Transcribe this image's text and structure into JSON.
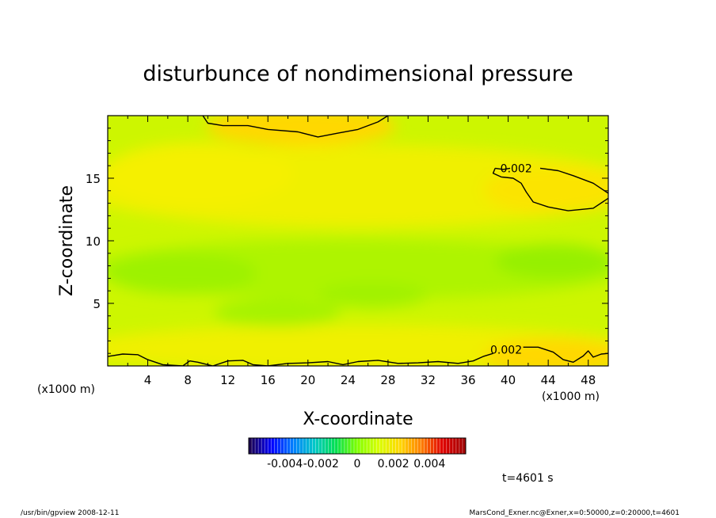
{
  "footer": {
    "left": "/usr/bin/gpview   2008-12-11",
    "right": "MarsCond_Exner.nc@Exner,x=0:50000,z=0:20000,t=4601"
  },
  "chart_data": {
    "type": "heatmap",
    "title": "disturbunce of nondimensional pressure",
    "xlabel": "X-coordinate",
    "ylabel": "Z-coordinate",
    "xunit_left": "(x1000 m)",
    "xunit_right": "(x1000 m)",
    "xlim": [
      0,
      50
    ],
    "ylim": [
      0,
      20
    ],
    "xticks": [
      4,
      8,
      12,
      16,
      20,
      24,
      28,
      32,
      36,
      40,
      44,
      48
    ],
    "xtick_labels": [
      "4",
      "8",
      "12",
      "16",
      "20",
      "24",
      "28",
      "32",
      "36",
      "40",
      "44",
      "48"
    ],
    "yticks": [
      5,
      10,
      15
    ],
    "ytick_labels": [
      "5",
      "10",
      "15"
    ],
    "contour_labels": [
      {
        "text": "0.002",
        "x": 40.8,
        "z": 15.8
      },
      {
        "text": "0.002",
        "x": 39.8,
        "z": 1.3
      }
    ],
    "contour_lines": [
      {
        "level": 0.002,
        "points": [
          [
            9.5,
            20
          ],
          [
            10,
            19.4
          ],
          [
            11.5,
            19.2
          ],
          [
            14,
            19.2
          ],
          [
            16,
            18.9
          ],
          [
            19,
            18.7
          ],
          [
            21,
            18.3
          ],
          [
            23,
            18.6
          ],
          [
            25,
            18.9
          ],
          [
            27,
            19.5
          ],
          [
            28,
            20
          ]
        ]
      },
      {
        "level": 0.002,
        "points": [
          [
            38.7,
            15.8
          ],
          [
            39.5,
            15.7
          ],
          [
            40.2,
            15.8
          ]
        ]
      },
      {
        "level": 0.002,
        "points": [
          [
            43.2,
            15.8
          ],
          [
            45,
            15.6
          ],
          [
            46.5,
            15.2
          ],
          [
            48.5,
            14.6
          ],
          [
            50,
            13.8
          ]
        ]
      },
      {
        "level": 0.002,
        "points": [
          [
            38.7,
            15.8
          ],
          [
            38.5,
            15.4
          ],
          [
            39.3,
            15.1
          ],
          [
            40.5,
            15.0
          ],
          [
            41.3,
            14.6
          ],
          [
            41.8,
            13.9
          ],
          [
            42.5,
            13.1
          ],
          [
            44,
            12.7
          ],
          [
            46,
            12.4
          ],
          [
            48.5,
            12.6
          ],
          [
            50,
            13.4
          ]
        ]
      },
      {
        "level": 0.002,
        "points": [
          [
            0,
            0.75
          ],
          [
            1.5,
            0.95
          ],
          [
            3,
            0.9
          ],
          [
            4,
            0.5
          ],
          [
            5.5,
            0.1
          ],
          [
            7.5,
            0.0
          ],
          [
            8.2,
            0.4
          ],
          [
            9,
            0.3
          ],
          [
            10.5,
            0.0
          ],
          [
            12,
            0.4
          ],
          [
            13.5,
            0.45
          ],
          [
            14.5,
            0.1
          ],
          [
            16,
            0.0
          ],
          [
            18,
            0.2
          ],
          [
            20,
            0.25
          ],
          [
            22,
            0.35
          ],
          [
            23.5,
            0.1
          ],
          [
            25,
            0.35
          ],
          [
            27,
            0.45
          ],
          [
            29,
            0.2
          ],
          [
            31,
            0.25
          ],
          [
            33,
            0.35
          ],
          [
            35,
            0.2
          ],
          [
            36.5,
            0.4
          ],
          [
            37.5,
            0.75
          ],
          [
            38.5,
            1.0
          ]
        ]
      },
      {
        "level": 0.002,
        "points": [
          [
            41.5,
            1.5
          ],
          [
            43,
            1.5
          ],
          [
            44.5,
            1.1
          ],
          [
            45.5,
            0.5
          ],
          [
            46.5,
            0.3
          ],
          [
            47.5,
            0.8
          ],
          [
            48,
            1.2
          ],
          [
            48.5,
            0.7
          ],
          [
            49.3,
            0.95
          ],
          [
            50,
            1.0
          ]
        ]
      }
    ],
    "colorbar": {
      "min": -0.006,
      "max": 0.006,
      "tick_values": [
        -0.004,
        -0.002,
        0,
        0.002,
        0.004
      ],
      "tick_labels": [
        "-0.004",
        "-0.002",
        "0",
        "0.002",
        "0.004"
      ],
      "colors": [
        "#1a0052",
        "#0000ff",
        "#0080ff",
        "#00c8c8",
        "#00e050",
        "#80ff00",
        "#d8ff00",
        "#ffd800",
        "#ff8000",
        "#e00000",
        "#a00000"
      ]
    },
    "field_colors": {
      "green": "#99f200",
      "yellow_green": "#cdf600",
      "yellow": "#f0f000",
      "orange_yellow": "#ffd400"
    },
    "grid": false
  },
  "time_label": "t=4601 s"
}
